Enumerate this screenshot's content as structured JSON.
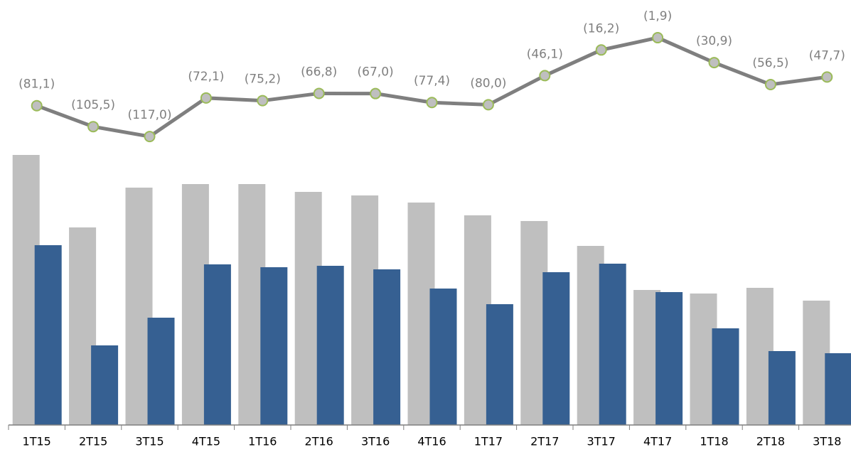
{
  "chart_data": {
    "type": "bar",
    "categories": [
      "1T15",
      "2T15",
      "3T15",
      "4T15",
      "1T16",
      "2T16",
      "3T16",
      "4T16",
      "1T17",
      "2T17",
      "3T17",
      "4T17",
      "1T18",
      "2T18",
      "3T18"
    ],
    "ylim": [
      0,
      400
    ],
    "y2lim": [
      -453,
      42
    ],
    "series": [
      {
        "color": "#bfbfbf",
        "values": [
          380,
          278,
          334,
          339,
          339,
          328,
          323,
          313,
          295,
          287,
          252,
          190,
          185,
          193,
          175
        ]
      },
      {
        "color": "#366092",
        "values": [
          253,
          112,
          151,
          226,
          222,
          224,
          219,
          192,
          170,
          215,
          227,
          187,
          136,
          104,
          101
        ]
      },
      {
        "type": "line",
        "axis": "y2",
        "color": "#7f7f7f",
        "marker_color": "#bfbfbf",
        "marker_edge": "#9bbb59",
        "values": [
          -81.1,
          -105.5,
          -117.0,
          -72.1,
          -75.2,
          -66.8,
          -67.0,
          -77.4,
          -80.0,
          -46.1,
          -16.2,
          -1.9,
          -30.9,
          -56.5,
          -47.7
        ],
        "value_labels": [
          "(81,1)",
          "(105,5)",
          "(117,0)",
          "(72,1)",
          "(75,2)",
          "(66,8)",
          "(67,0)",
          "(77,4)",
          "(80,0)",
          "(46,1)",
          "(16,2)",
          "(1,9)",
          "(30,9)",
          "(56,5)",
          "(47,7)"
        ]
      }
    ]
  }
}
